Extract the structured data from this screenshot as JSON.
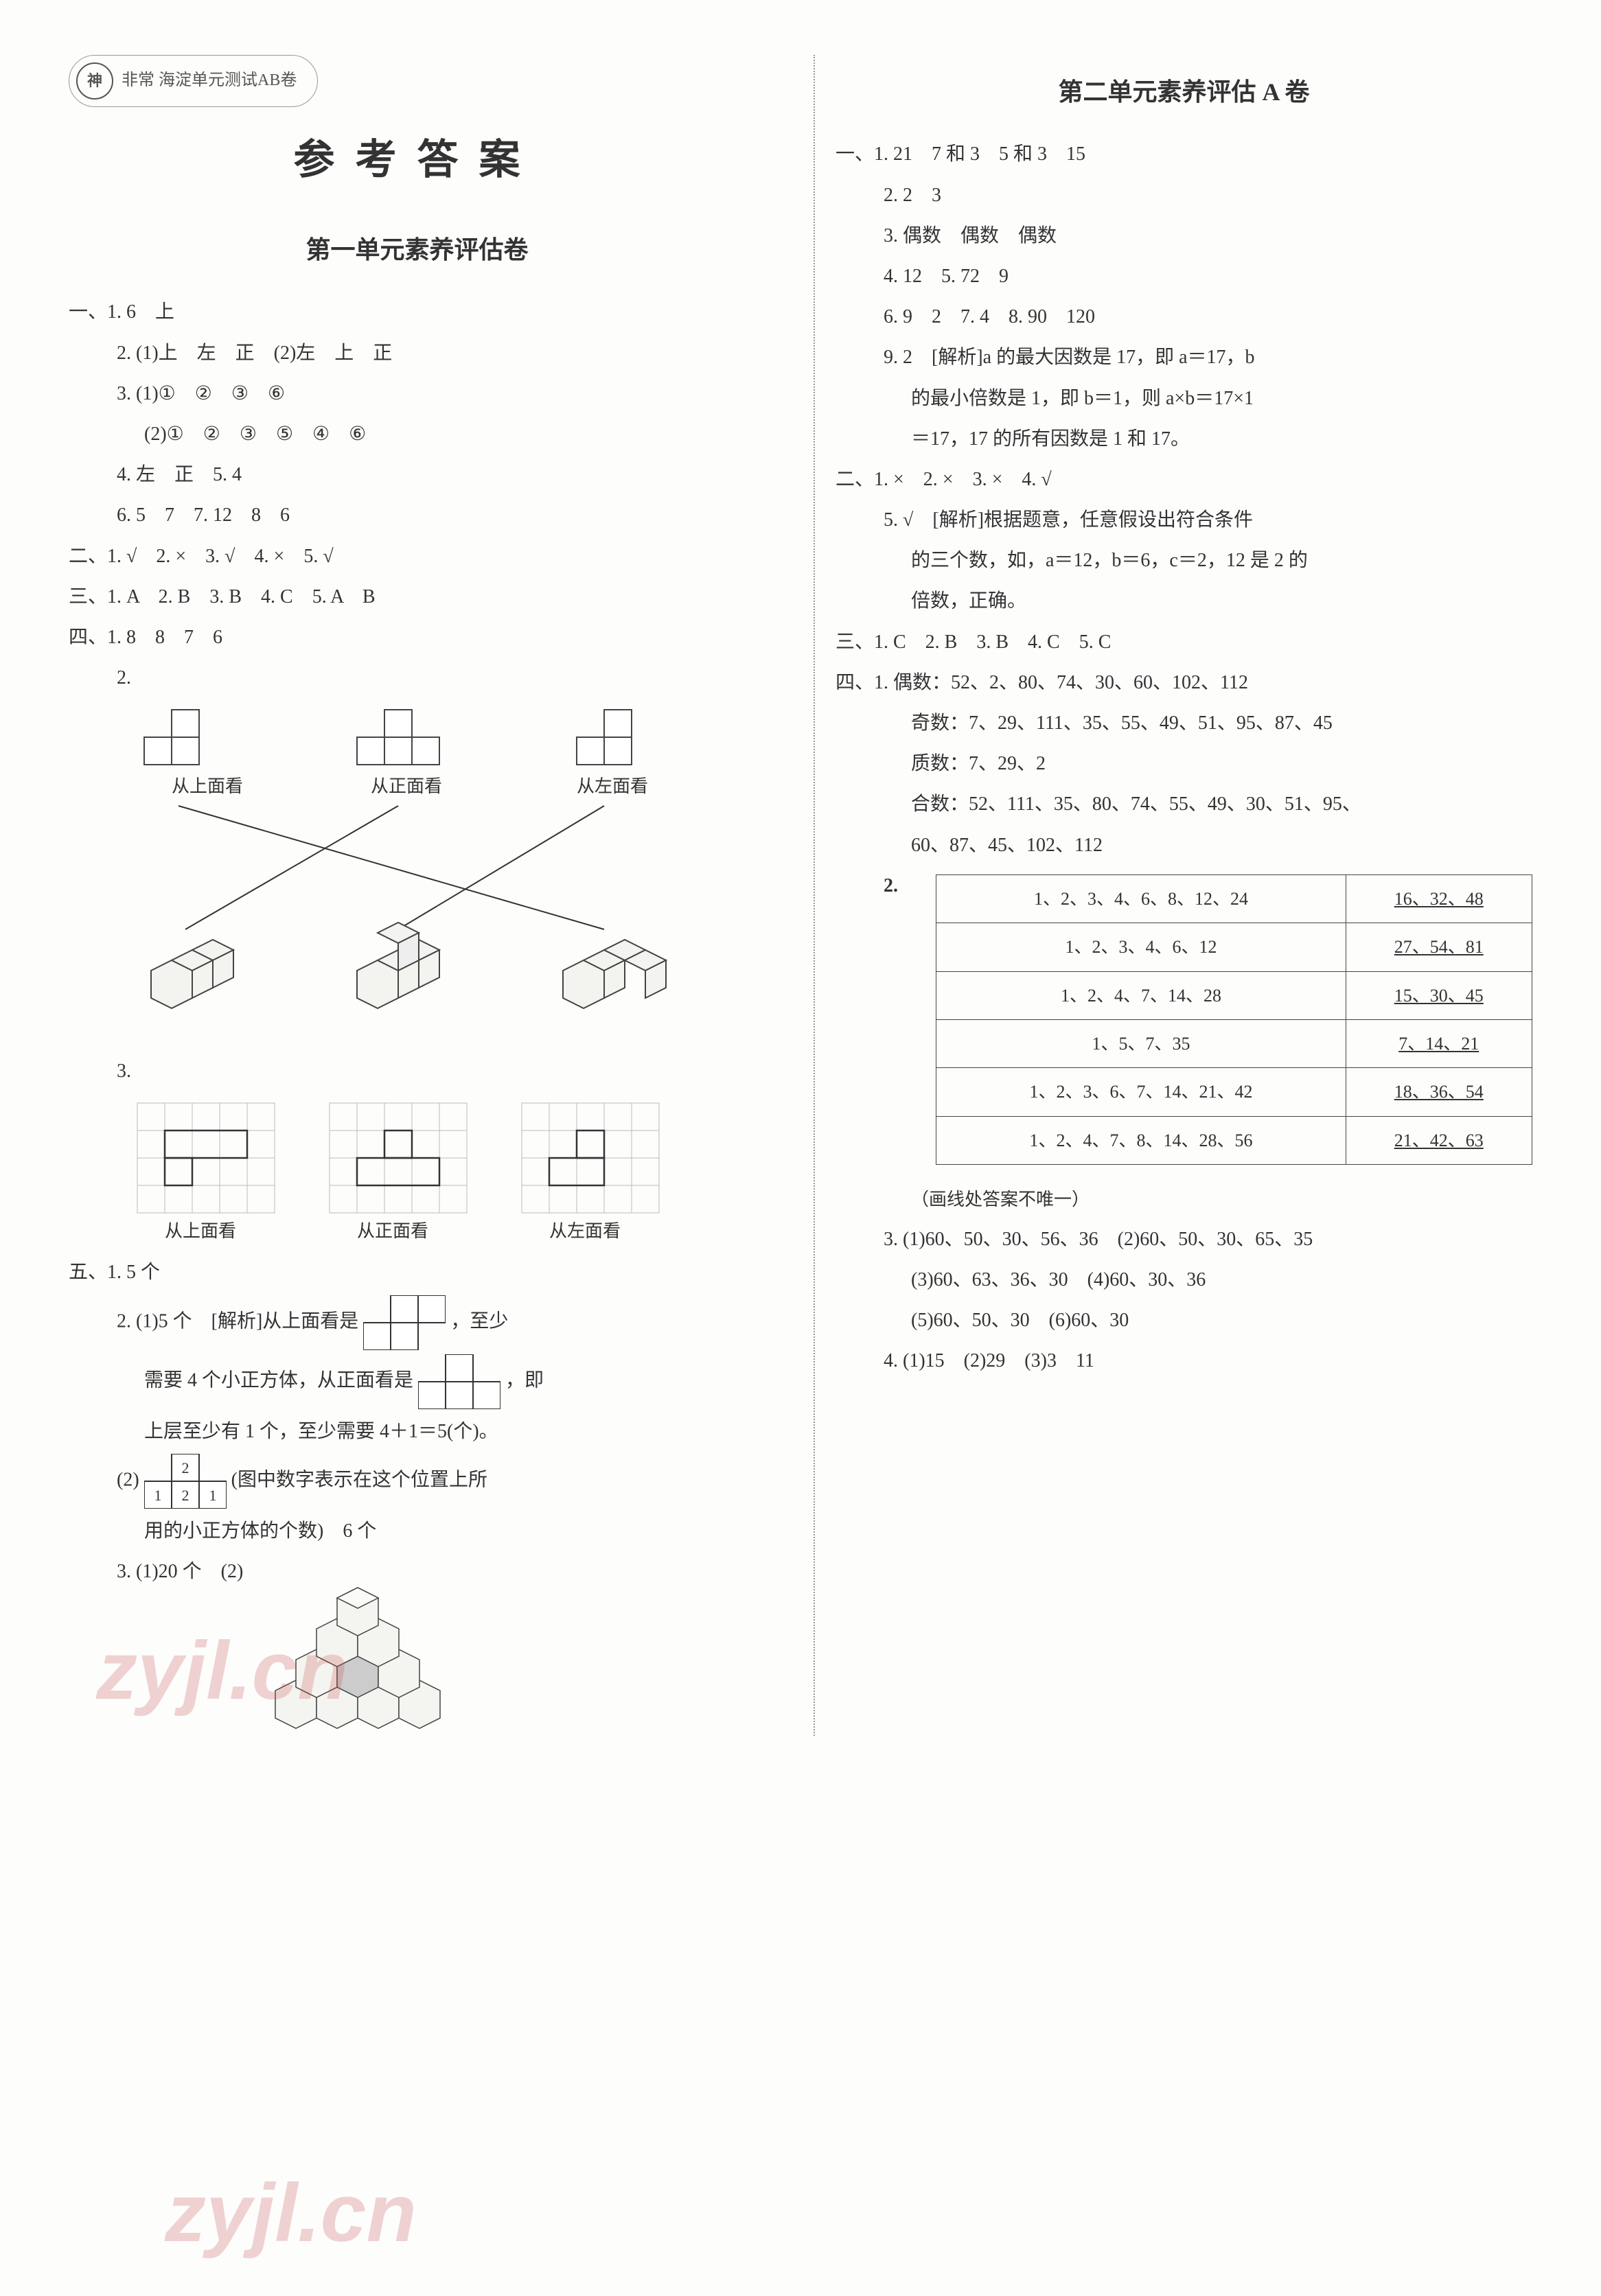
{
  "badge": {
    "logo": "神",
    "text": "非常 海淀单元测试AB卷"
  },
  "main_title": "参考答案",
  "unit1": {
    "title": "第一单元素养评估卷",
    "s1": {
      "l1": "一、1. 6　上",
      "l2": "2. (1)上　左　正　(2)左　上　正",
      "l3": "3. (1)①　②　③　⑥",
      "l4": "(2)①　②　③　⑤　④　⑥",
      "l5": "4. 左　正　5. 4",
      "l6": "6. 5　7　7. 12　8　6"
    },
    "s2": "二、1. √　2. ×　3. √　4. ×　5. √",
    "s3": "三、1. A　2. B　3. B　4. C　5. A　B",
    "s4": {
      "l1": "四、1. 8　8　7　6",
      "l2": "2.",
      "cap1a": "从上面看",
      "cap1b": "从正面看",
      "cap1c": "从左面看",
      "l3": "3.",
      "cap3a": "从上面看",
      "cap3b": "从正面看",
      "cap3c": "从左面看"
    },
    "s5": {
      "l1": "五、1. 5 个",
      "l2a": "2. (1)5 个　[解析]从上面看是",
      "l2b": "，至少",
      "l2c": "需要 4 个小正方体，从正面看是",
      "l2d": "，即",
      "l2e": "上层至少有 1 个，至少需要 4＋1＝5(个)。",
      "l3a": "(2)",
      "l3b": "(图中数字表示在这个位置上所",
      "l3c": "用的小正方体的个数)　6 个",
      "l4": "3. (1)20 个　(2)"
    }
  },
  "unit2": {
    "title": "第二单元素养评估 A 卷",
    "s1": {
      "l1": "一、1. 21　7 和 3　5 和 3　15",
      "l2": "2. 2　3",
      "l3": "3. 偶数　偶数　偶数",
      "l4": "4. 12　5. 72　9",
      "l5": "6. 9　2　7. 4　8. 90　120",
      "l6a": "9. 2　[解析]a 的最大因数是 17，即 a＝17，b",
      "l6b": "的最小倍数是 1，即 b＝1，则 a×b＝17×1",
      "l6c": "＝17，17 的所有因数是 1 和 17。"
    },
    "s2": {
      "l1": "二、1. ×　2. ×　3. ×　4. √",
      "l2a": "5. √　[解析]根据题意，任意假设出符合条件",
      "l2b": "的三个数，如，a＝12，b＝6，c＝2，12 是 2 的",
      "l2c": "倍数，正确。"
    },
    "s3": "三、1. C　2. B　3. B　4. C　5. C",
    "s4": {
      "l1": "四、1. 偶数：52、2、80、74、30、60、102、112",
      "l2": "奇数：7、29、111、35、55、49、51、95、87、45",
      "l3": "质数：7、29、2",
      "l4": "合数：52、111、35、80、74、55、49、30、51、95、",
      "l5": "60、87、45、102、112",
      "t2label": "2.",
      "table": {
        "rows": [
          [
            "1、2、3、4、6、8、12、24",
            "16、32、48"
          ],
          [
            "1、2、3、4、6、12",
            "27、54、81"
          ],
          [
            "1、2、4、7、14、28",
            "15、30、45"
          ],
          [
            "1、5、7、35",
            "7、14、21"
          ],
          [
            "1、2、3、6、7、14、21、42",
            "18、36、54"
          ],
          [
            "1、2、4、7、8、14、28、56",
            "21、42、63"
          ]
        ]
      },
      "note": "（画线处答案不唯一）",
      "l3a": "3. (1)60、50、30、56、36　(2)60、50、30、65、35",
      "l3b": "(3)60、63、36、30　(4)60、30、36",
      "l3c": "(5)60、50、30　(6)60、30",
      "l4a": "4. (1)15　(2)29　(3)3　11"
    }
  },
  "watermarks": {
    "w1": "zyjl.cn",
    "w2": "zyjl.cn"
  }
}
